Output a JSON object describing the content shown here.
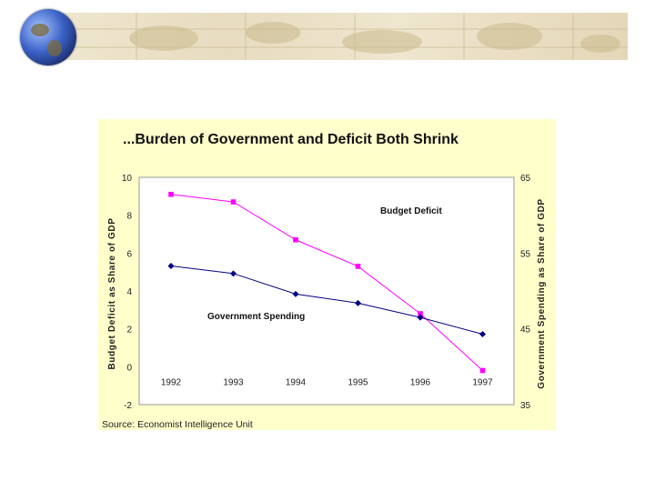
{
  "chart_data": {
    "type": "line",
    "title": "...Burden of Government and Deficit Both Shrink",
    "source": "Source: Economist Intelligence Unit",
    "categories": [
      "1992",
      "1993",
      "1994",
      "1995",
      "1996",
      "1997"
    ],
    "y_left": {
      "label": "Budget Deficit as Share of GDP",
      "range": [
        -2,
        10
      ],
      "ticks": [
        "10",
        "8",
        "6",
        "4",
        "2",
        "0",
        "-2"
      ]
    },
    "y_right": {
      "label": "Government Spending as Share of GDP",
      "range": [
        35,
        65
      ],
      "ticks": [
        "65",
        "55",
        "45",
        "35"
      ]
    },
    "series": [
      {
        "name": "Budget Deficit",
        "axis": "left",
        "color": "#ff00ff",
        "marker": "square",
        "values": [
          9.1,
          8.7,
          6.7,
          5.3,
          2.8,
          -0.2
        ]
      },
      {
        "name": "Government Spending",
        "axis": "right",
        "color": "#000080",
        "marker": "diamond",
        "values": [
          53.3,
          52.3,
          49.6,
          48.4,
          46.5,
          44.3
        ]
      }
    ],
    "grid": false
  }
}
